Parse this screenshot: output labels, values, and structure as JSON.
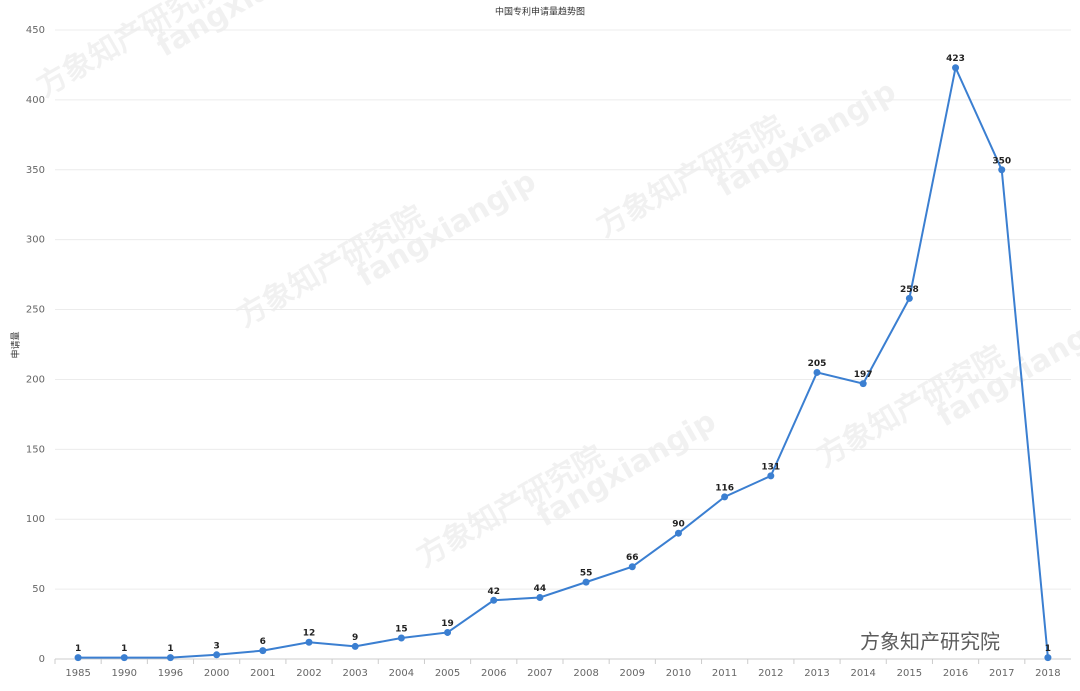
{
  "chart_data": {
    "type": "line",
    "title": "中国专利申请量趋势图",
    "y_label": "申请量",
    "categories": [
      "1985",
      "1990",
      "1996",
      "2000",
      "2001",
      "2002",
      "2003",
      "2004",
      "2005",
      "2006",
      "2007",
      "2008",
      "2009",
      "2010",
      "2011",
      "2012",
      "2013",
      "2014",
      "2015",
      "2016",
      "2017",
      "2018"
    ],
    "series": [
      {
        "name": "申请量",
        "color": "#3b7fd1",
        "values": [
          1,
          1,
          1,
          3,
          6,
          12,
          9,
          15,
          19,
          42,
          44,
          55,
          66,
          90,
          116,
          131,
          205,
          197,
          258,
          423,
          350,
          1
        ]
      }
    ],
    "ylim": [
      0,
      450
    ],
    "yticks": [
      0,
      50,
      100,
      150,
      200,
      250,
      300,
      350,
      400,
      450
    ],
    "grid": true,
    "watermark": "方象知产研究院",
    "watermark_latin": "fangxiangip"
  }
}
